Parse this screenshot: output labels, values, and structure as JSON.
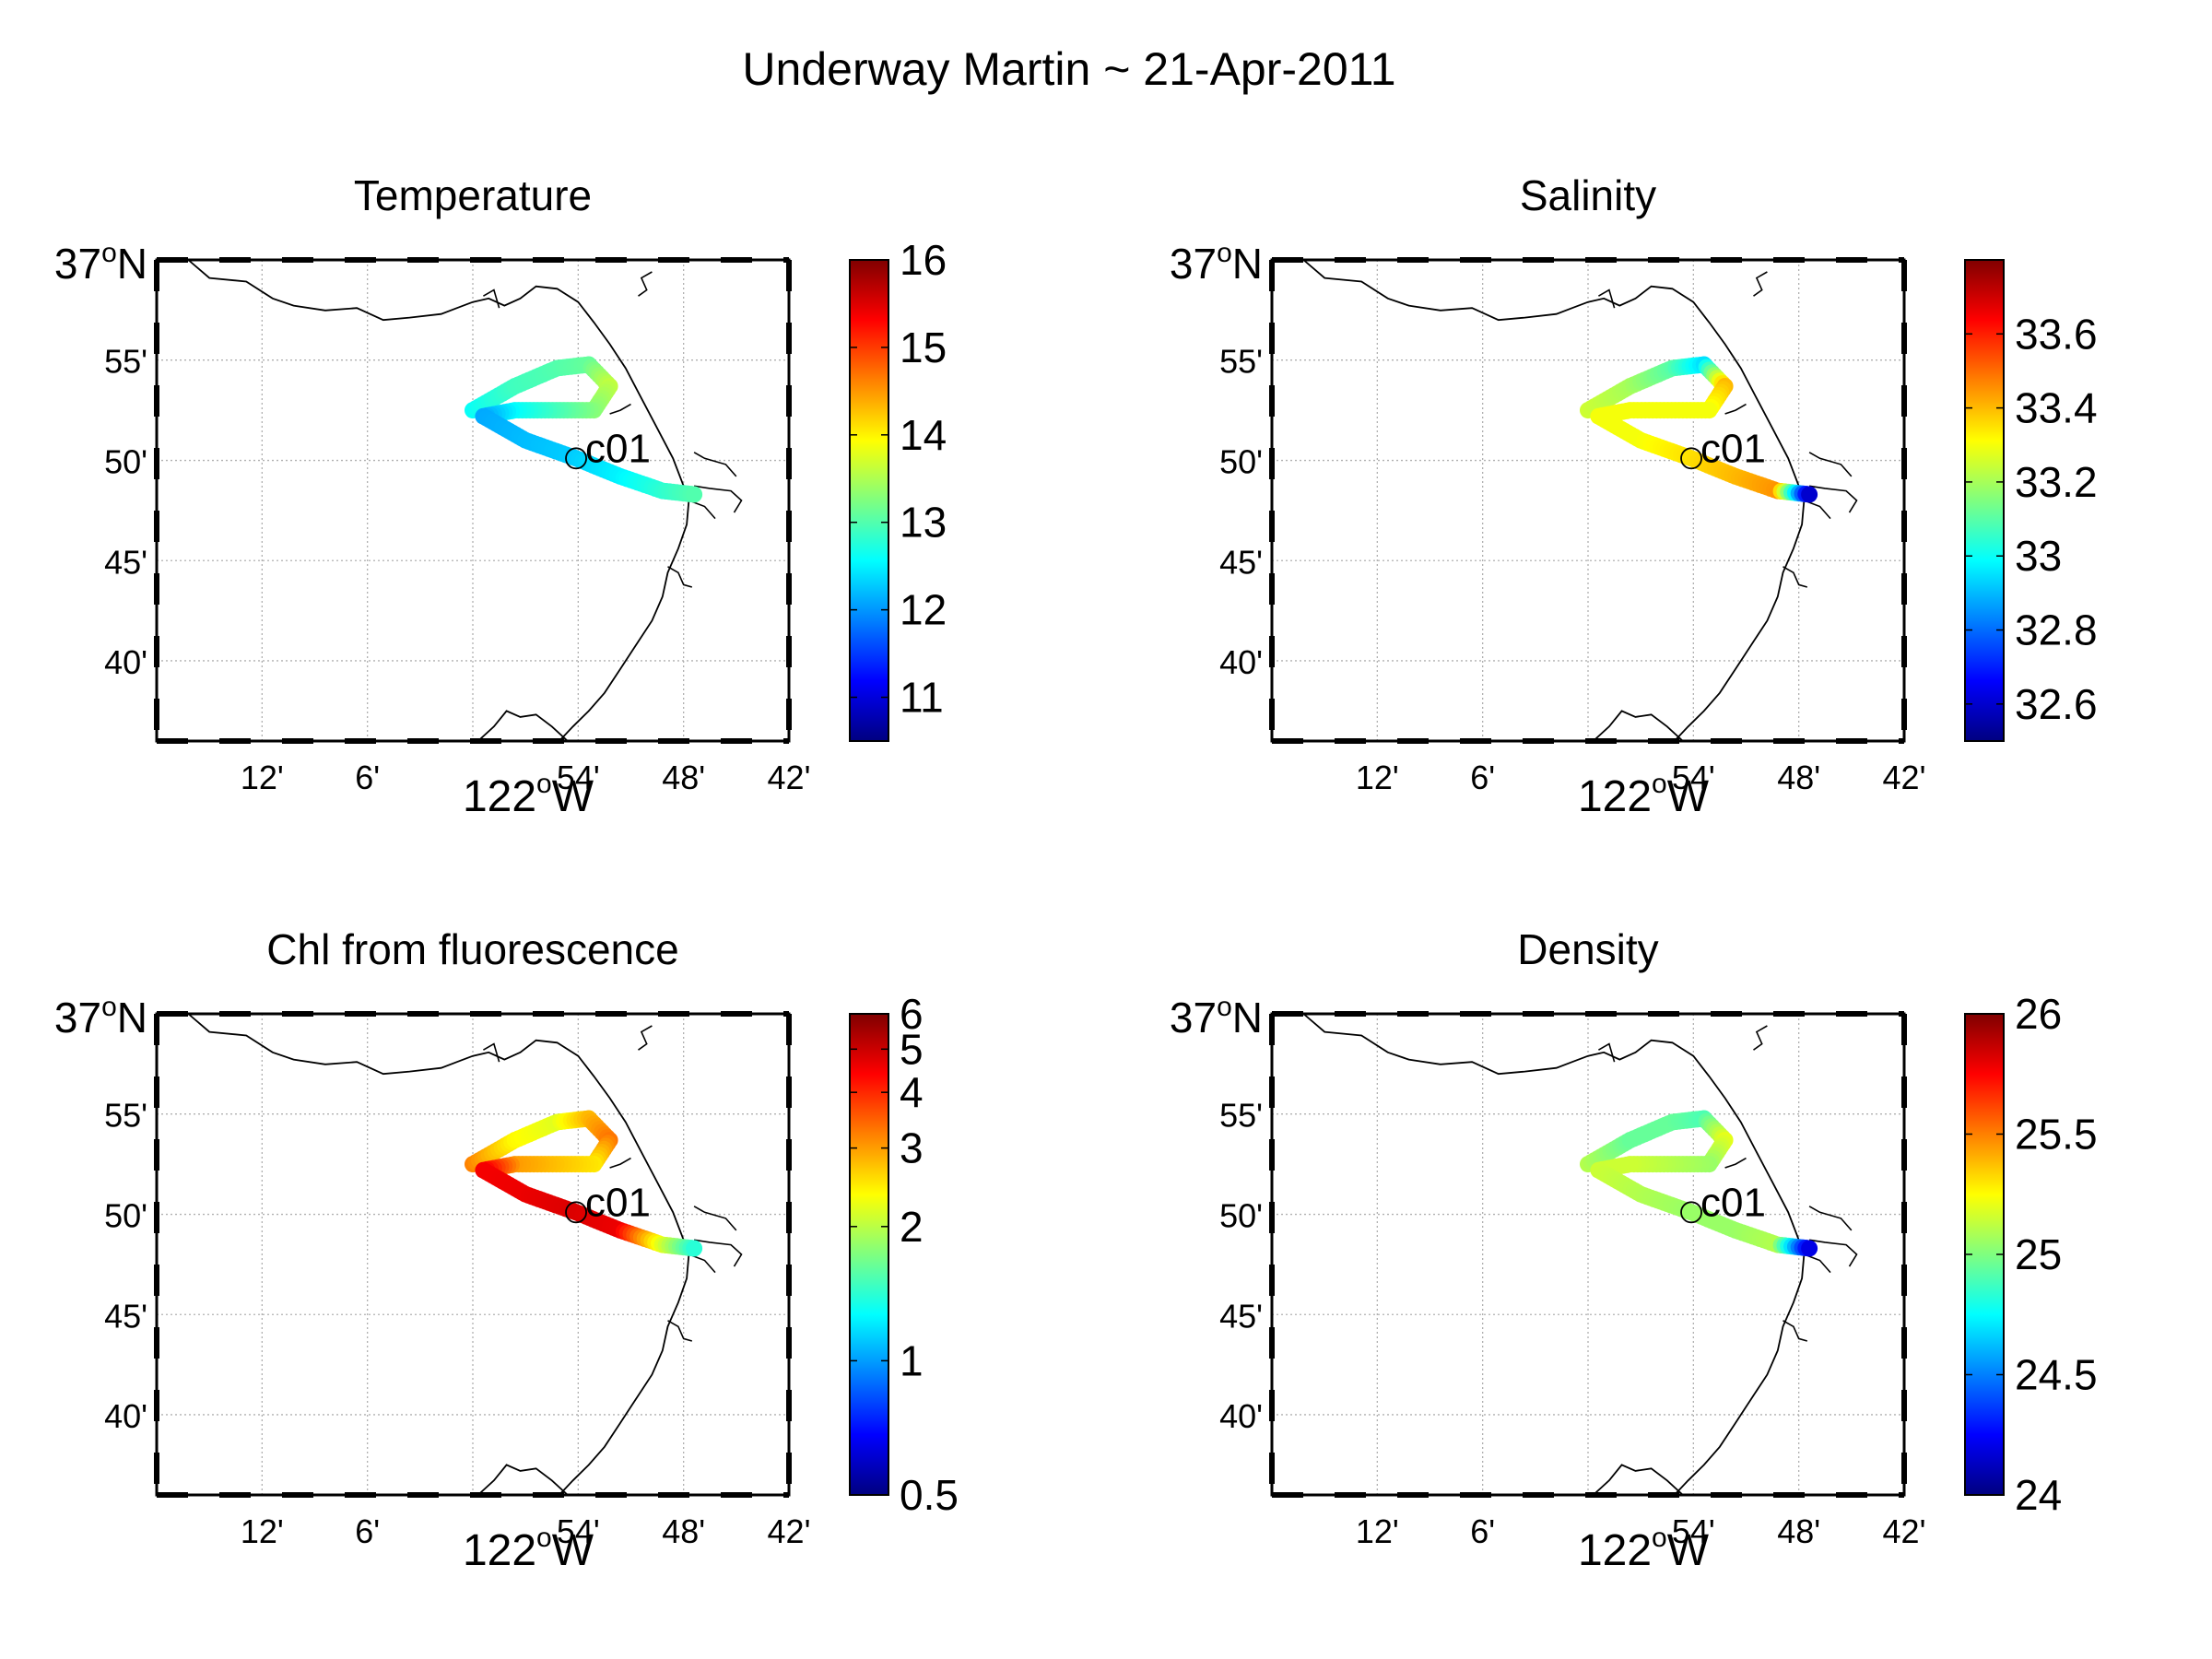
{
  "figure": {
    "suptitle": "Underway Martin ~ 21-Apr-2011"
  },
  "map_axes": {
    "xlim": [
      -122.3,
      -121.7
    ],
    "ylim": [
      36.6,
      37.0
    ],
    "y_ticks": [
      {
        "value": 37.0,
        "label": "37",
        "sup": "o",
        "suffix": "N"
      },
      {
        "value": 36.9167,
        "label": "55'"
      },
      {
        "value": 36.8333,
        "label": "50'"
      },
      {
        "value": 36.75,
        "label": "45'"
      },
      {
        "value": 36.6667,
        "label": "40'"
      }
    ],
    "x_ticks": [
      {
        "value": -122.2,
        "label": "12'"
      },
      {
        "value": -122.1,
        "label": "6'"
      },
      {
        "value": -122.0,
        "label": "122",
        "sup": "o",
        "suffix": "W"
      },
      {
        "value": -121.9,
        "label": "54'"
      },
      {
        "value": -121.8,
        "label": "48'"
      },
      {
        "value": -121.7,
        "label": "42'"
      }
    ],
    "grid": true,
    "station": {
      "label": "c01",
      "lon": -121.902,
      "lat": 36.835
    }
  },
  "chart_data": [
    {
      "type": "scatter",
      "title": "Temperature",
      "colormap": "jet",
      "scale": "linear",
      "clim": [
        10.5,
        16
      ],
      "colorbar_ticks": [
        11,
        12,
        13,
        14,
        15,
        16
      ],
      "track": [
        {
          "lon": -122.0,
          "lat": 36.875,
          "value": 12.6
        },
        {
          "lon": -121.96,
          "lat": 36.895,
          "value": 12.9
        },
        {
          "lon": -121.92,
          "lat": 36.91,
          "value": 13.0
        },
        {
          "lon": -121.89,
          "lat": 36.913,
          "value": 13.1
        },
        {
          "lon": -121.87,
          "lat": 36.895,
          "value": 13.6
        },
        {
          "lon": -121.885,
          "lat": 36.875,
          "value": 13.3
        },
        {
          "lon": -121.96,
          "lat": 36.875,
          "value": 12.6
        },
        {
          "lon": -121.99,
          "lat": 36.87,
          "value": 12.1
        },
        {
          "lon": -121.95,
          "lat": 36.85,
          "value": 12.2
        },
        {
          "lon": -121.902,
          "lat": 36.835,
          "value": 12.3
        },
        {
          "lon": -121.86,
          "lat": 36.82,
          "value": 12.5
        },
        {
          "lon": -121.82,
          "lat": 36.808,
          "value": 12.8
        },
        {
          "lon": -121.79,
          "lat": 36.805,
          "value": 13.0
        }
      ]
    },
    {
      "type": "scatter",
      "title": "Salinity",
      "colormap": "jet",
      "scale": "linear",
      "clim": [
        32.5,
        33.8
      ],
      "colorbar_ticks": [
        32.6,
        32.8,
        33,
        33.2,
        33.4,
        33.6
      ],
      "track": [
        {
          "lon": -122.0,
          "lat": 36.875,
          "value": 33.25
        },
        {
          "lon": -121.96,
          "lat": 36.895,
          "value": 33.2
        },
        {
          "lon": -121.92,
          "lat": 36.91,
          "value": 33.1
        },
        {
          "lon": -121.89,
          "lat": 36.913,
          "value": 32.95
        },
        {
          "lon": -121.87,
          "lat": 36.895,
          "value": 33.4
        },
        {
          "lon": -121.885,
          "lat": 36.875,
          "value": 33.3
        },
        {
          "lon": -121.96,
          "lat": 36.875,
          "value": 33.3
        },
        {
          "lon": -121.99,
          "lat": 36.87,
          "value": 33.3
        },
        {
          "lon": -121.95,
          "lat": 36.85,
          "value": 33.3
        },
        {
          "lon": -121.902,
          "lat": 36.835,
          "value": 33.35
        },
        {
          "lon": -121.86,
          "lat": 36.82,
          "value": 33.4
        },
        {
          "lon": -121.82,
          "lat": 36.808,
          "value": 33.45
        },
        {
          "lon": -121.79,
          "lat": 36.805,
          "value": 32.6
        }
      ]
    },
    {
      "type": "scatter",
      "title": "Chl from fluorescence",
      "colormap": "jet",
      "scale": "log",
      "clim": [
        0.5,
        6
      ],
      "colorbar_ticks": [
        0.5,
        1,
        2,
        3,
        4,
        5,
        6
      ],
      "track": [
        {
          "lon": -122.0,
          "lat": 36.875,
          "value": 3.2
        },
        {
          "lon": -121.96,
          "lat": 36.895,
          "value": 2.4
        },
        {
          "lon": -121.92,
          "lat": 36.91,
          "value": 2.2
        },
        {
          "lon": -121.89,
          "lat": 36.913,
          "value": 2.8
        },
        {
          "lon": -121.87,
          "lat": 36.895,
          "value": 3.3
        },
        {
          "lon": -121.885,
          "lat": 36.875,
          "value": 2.5
        },
        {
          "lon": -121.96,
          "lat": 36.875,
          "value": 3.0
        },
        {
          "lon": -121.99,
          "lat": 36.87,
          "value": 4.5
        },
        {
          "lon": -121.95,
          "lat": 36.85,
          "value": 4.6
        },
        {
          "lon": -121.902,
          "lat": 36.835,
          "value": 4.8
        },
        {
          "lon": -121.86,
          "lat": 36.82,
          "value": 4.6
        },
        {
          "lon": -121.82,
          "lat": 36.808,
          "value": 2.2
        },
        {
          "lon": -121.79,
          "lat": 36.805,
          "value": 1.4
        }
      ]
    },
    {
      "type": "scatter",
      "title": "Density",
      "colormap": "jet",
      "scale": "linear",
      "clim": [
        24,
        26
      ],
      "colorbar_ticks": [
        24,
        24.5,
        25,
        25.5,
        26
      ],
      "track": [
        {
          "lon": -122.0,
          "lat": 36.875,
          "value": 25.1
        },
        {
          "lon": -121.96,
          "lat": 36.895,
          "value": 24.95
        },
        {
          "lon": -121.92,
          "lat": 36.91,
          "value": 24.95
        },
        {
          "lon": -121.89,
          "lat": 36.913,
          "value": 24.9
        },
        {
          "lon": -121.87,
          "lat": 36.895,
          "value": 25.2
        },
        {
          "lon": -121.885,
          "lat": 36.875,
          "value": 25.05
        },
        {
          "lon": -121.96,
          "lat": 36.875,
          "value": 25.15
        },
        {
          "lon": -121.99,
          "lat": 36.87,
          "value": 25.15
        },
        {
          "lon": -121.95,
          "lat": 36.85,
          "value": 25.1
        },
        {
          "lon": -121.902,
          "lat": 36.835,
          "value": 25.05
        },
        {
          "lon": -121.86,
          "lat": 36.82,
          "value": 25.05
        },
        {
          "lon": -121.82,
          "lat": 36.808,
          "value": 25.1
        },
        {
          "lon": -121.79,
          "lat": 36.805,
          "value": 24.2
        }
      ]
    }
  ]
}
